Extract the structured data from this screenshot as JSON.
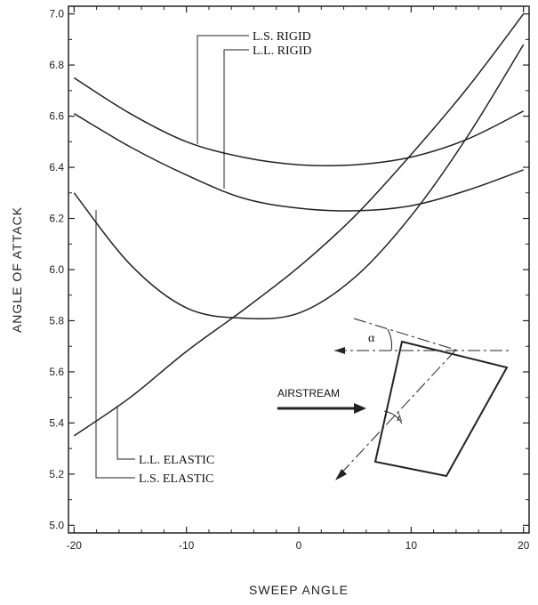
{
  "chart_data": {
    "type": "line",
    "title": "",
    "xlabel": "SWEEP ANGLE",
    "ylabel": "ANGLE OF ATTACK",
    "xlim": [
      -20.5,
      20.5
    ],
    "ylim": [
      4.97,
      7.03
    ],
    "x_ticks": [
      "-20",
      "-10",
      "0",
      "10",
      "20"
    ],
    "y_ticks": [
      "5.0",
      "5.2",
      "5.4",
      "5.6",
      "5.8",
      "6.0",
      "6.2",
      "6.4",
      "6.6",
      "6.8",
      "7.0"
    ],
    "grid": false,
    "series": [
      {
        "name": "L.S. RIGID",
        "x": [
          -20,
          -15,
          -10,
          -5,
          0,
          5,
          10,
          15,
          20
        ],
        "y": [
          6.75,
          6.61,
          6.5,
          6.44,
          6.41,
          6.41,
          6.44,
          6.51,
          6.62
        ]
      },
      {
        "name": "L.L. RIGID",
        "x": [
          -20,
          -15,
          -10,
          -5,
          0,
          5,
          10,
          15,
          20
        ],
        "y": [
          6.61,
          6.48,
          6.37,
          6.28,
          6.24,
          6.23,
          6.25,
          6.31,
          6.39
        ]
      },
      {
        "name": "L.L. ELASTIC",
        "x": [
          -20,
          -15,
          -10,
          -5,
          0,
          5,
          10,
          15,
          20
        ],
        "y": [
          5.35,
          5.5,
          5.68,
          5.84,
          6.01,
          6.21,
          6.45,
          6.71,
          7.0
        ]
      },
      {
        "name": "L.S. ELASTIC",
        "x": [
          -20,
          -15,
          -10,
          -5,
          0,
          5,
          10,
          15,
          20
        ],
        "y": [
          6.3,
          6.02,
          5.85,
          5.81,
          5.83,
          5.97,
          6.21,
          6.52,
          6.88
        ]
      }
    ],
    "annotations": {
      "ls_rigid": "L.S. RIGID",
      "ll_rigid": "L.L. RIGID",
      "ll_elastic": "L.L. ELASTIC",
      "ls_elastic": "L.S. ELASTIC",
      "airstream": "AIRSTREAM",
      "alpha_symbol": "α",
      "lambda_symbol": "λ"
    }
  }
}
